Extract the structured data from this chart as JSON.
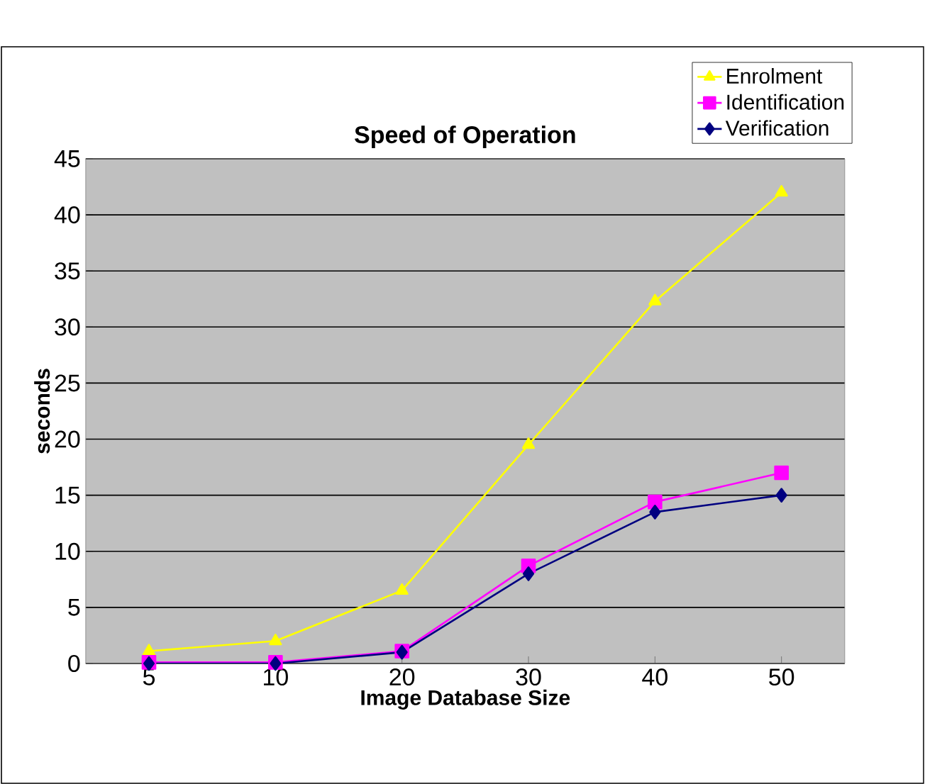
{
  "chart_data": {
    "type": "line",
    "title": "Speed of Operation",
    "xlabel": "Image Database Size",
    "ylabel": "seconds",
    "categories": [
      "5",
      "10",
      "20",
      "30",
      "40",
      "50"
    ],
    "series": [
      {
        "name": "Enrolment",
        "color": "#ffff00",
        "marker": "triangle",
        "values": [
          1.1,
          2,
          6.5,
          19.5,
          32.3,
          42
        ]
      },
      {
        "name": "Identification",
        "color": "#ff00ff",
        "marker": "square",
        "values": [
          0.1,
          0.1,
          1.1,
          8.7,
          14.4,
          17
        ]
      },
      {
        "name": "Verification",
        "color": "#000080",
        "marker": "diamond",
        "values": [
          0,
          0,
          1,
          8,
          13.5,
          15
        ]
      }
    ],
    "ylim": [
      0,
      45
    ],
    "yticks": [
      0,
      5,
      10,
      15,
      20,
      25,
      30,
      35,
      40,
      45
    ],
    "grid": "y",
    "legend": "top right",
    "line_style": "solid"
  }
}
